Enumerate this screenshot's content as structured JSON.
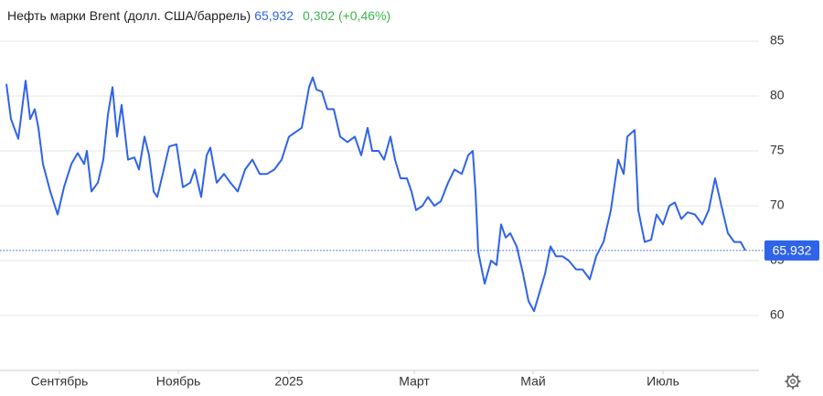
{
  "chart_data": {
    "type": "line",
    "title": "Нефть марки Brent (долл. США/баррель)",
    "price_text": "65,932",
    "change_text": "0,302 (+0,46%)",
    "last_price": {
      "value": 65.932,
      "label": "65.932"
    },
    "color": "#2f63e8",
    "grid": true,
    "ylim": [
      55,
      88.75
    ],
    "yticks": [
      60,
      65,
      70,
      75,
      80,
      85
    ],
    "xlim": [
      0,
      830
    ],
    "xticks": [
      {
        "value": 65,
        "label": "Сентябрь"
      },
      {
        "value": 195,
        "label": "Ноябрь"
      },
      {
        "value": 316,
        "label": "2025"
      },
      {
        "value": 453,
        "label": "Март"
      },
      {
        "value": 583,
        "label": "Май"
      },
      {
        "value": 725,
        "label": "Июль"
      }
    ],
    "x": [
      7,
      12,
      20,
      28,
      33,
      38,
      42,
      47,
      55,
      63,
      70,
      78,
      85,
      92,
      95,
      100,
      107,
      113,
      118,
      123,
      128,
      133,
      140,
      147,
      152,
      158,
      163,
      168,
      172,
      178,
      185,
      193,
      200,
      208,
      213,
      220,
      226,
      230,
      237,
      245,
      252,
      260,
      268,
      276,
      284,
      292,
      300,
      308,
      316,
      323,
      330,
      338,
      342,
      346,
      352,
      358,
      365,
      372,
      380,
      388,
      395,
      402,
      407,
      414,
      420,
      427,
      432,
      438,
      445,
      450,
      455,
      462,
      468,
      475,
      482,
      490,
      497,
      505,
      512,
      517,
      520,
      523,
      530,
      537,
      543,
      548,
      553,
      558,
      565,
      572,
      578,
      584,
      590,
      596,
      602,
      608,
      615,
      622,
      630,
      637,
      645,
      652,
      660,
      668,
      676,
      682,
      686,
      690,
      694,
      698,
      705,
      712,
      718,
      725,
      732,
      738,
      745,
      752,
      760,
      768,
      775,
      782,
      790,
      796,
      803,
      810,
      815
    ],
    "values": [
      81.1,
      77.9,
      76.1,
      81.4,
      77.9,
      78.8,
      77.1,
      73.8,
      71.3,
      69.2,
      71.7,
      73.8,
      74.8,
      73.8,
      75.0,
      71.3,
      72.1,
      74.2,
      78.3,
      80.8,
      76.3,
      79.2,
      74.2,
      74.4,
      73.3,
      76.3,
      74.6,
      71.3,
      70.8,
      72.9,
      75.4,
      75.6,
      71.7,
      72.1,
      73.3,
      70.8,
      74.6,
      75.3,
      72.1,
      72.9,
      72.1,
      71.3,
      73.3,
      74.2,
      72.9,
      72.9,
      73.3,
      74.2,
      76.3,
      76.7,
      77.1,
      80.8,
      81.7,
      80.6,
      80.4,
      78.8,
      78.8,
      76.3,
      75.8,
      76.3,
      74.6,
      77.1,
      75.0,
      75.0,
      74.2,
      76.3,
      74.2,
      72.5,
      72.5,
      71.3,
      69.6,
      70.0,
      70.8,
      70.0,
      70.4,
      72.1,
      73.3,
      72.9,
      74.6,
      75.0,
      71.3,
      65.8,
      62.9,
      65.0,
      64.6,
      68.3,
      67.1,
      67.5,
      66.3,
      63.8,
      61.3,
      60.4,
      62.1,
      63.8,
      66.3,
      65.4,
      65.4,
      65.0,
      64.2,
      64.2,
      63.3,
      65.4,
      66.7,
      69.6,
      74.2,
      72.9,
      76.3,
      76.6,
      76.9,
      69.6,
      66.7,
      66.9,
      69.2,
      68.3,
      70.0,
      70.3,
      68.8,
      69.4,
      69.2,
      68.3,
      69.6,
      72.5,
      69.6,
      67.5,
      66.7,
      66.7,
      65.932
    ]
  }
}
